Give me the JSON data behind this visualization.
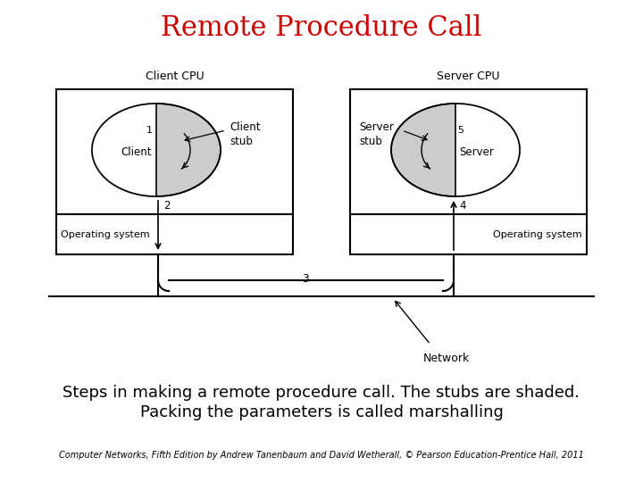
{
  "title": "Remote Procedure Call",
  "title_color": "#cc0000",
  "title_fontsize": 22,
  "caption_line1": "Steps in making a remote procedure call. The stubs are shaded.",
  "caption_line2": "Packing the parameters is called marshalling",
  "caption_fontsize": 13,
  "footer": "Computer Networks, Fifth Edition by Andrew Tanenbaum and David Wetherall, © Pearson Education-Prentice Hall, 2011",
  "footer_fontsize": 7,
  "bg_color": "#ffffff",
  "box_color": "#000000",
  "stub_fill": "#cccccc",
  "text_color": "#000000",
  "client_cpu_label": "Client CPU",
  "server_cpu_label": "Server CPU",
  "os_label": "Operating system",
  "client_label": "Client",
  "client_stub_label": "Client\nstub",
  "server_label": "Server",
  "server_stub_label": "Server\nstub",
  "network_label": "Network",
  "step1": "1",
  "step2": "2",
  "step3": "3",
  "step4": "4",
  "step5": "5"
}
